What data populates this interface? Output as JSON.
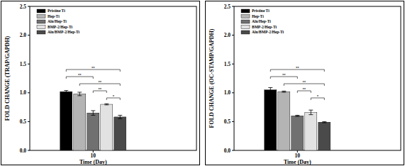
{
  "chart_data": [
    {
      "type": "bar",
      "y_label": "FOLD CHANGE (TRAP/GAPDH)",
      "x_label": "Time (Day)",
      "categories": [
        "10"
      ],
      "ylim": [
        0,
        2.5
      ],
      "yticks": [
        {
          "value": 0,
          "label": "0.0"
        },
        {
          "value": 0.5,
          "label": "0.5"
        },
        {
          "value": 1,
          "label": "1.0"
        },
        {
          "value": 1.5,
          "label": "1.5"
        },
        {
          "value": 2,
          "label": "2.0"
        },
        {
          "value": 2.5,
          "label": "2.5"
        }
      ],
      "legend": "upper left",
      "series": [
        {
          "name": "Pristine Ti",
          "color": "#000000",
          "values": [
            1.02
          ],
          "errors": [
            0.02
          ]
        },
        {
          "name": "Hep-Ti",
          "color": "#b4b4b4",
          "values": [
            0.98
          ],
          "errors": [
            0.03
          ]
        },
        {
          "name": "Aln/Hep-Ti",
          "color": "#707070",
          "values": [
            0.65
          ],
          "errors": [
            0.04
          ]
        },
        {
          "name": "BMP-2/Hep-Ti",
          "color": "#e2e2e2",
          "values": [
            0.8
          ],
          "errors": [
            0.01
          ]
        },
        {
          "name": "Aln/BMP-2/Hep-Ti",
          "color": "#4a4a4a",
          "values": [
            0.58
          ],
          "errors": [
            0.03
          ]
        }
      ],
      "annotations": [
        {
          "text": "**",
          "between": [
            0,
            4
          ]
        },
        {
          "text": "**",
          "between": [
            0,
            2
          ]
        },
        {
          "text": "**",
          "between": [
            1,
            4
          ]
        },
        {
          "text": "**",
          "between": [
            2,
            3
          ]
        },
        {
          "text": "*",
          "between": [
            3,
            4
          ]
        }
      ]
    },
    {
      "type": "bar",
      "y_label": "FOLD CHANGE (OC-STAMP/GAPDH)",
      "x_label": "Time (Day)",
      "categories": [
        "10"
      ],
      "ylim": [
        0,
        2.5
      ],
      "yticks": [
        {
          "value": 0,
          "label": "0.0"
        },
        {
          "value": 0.5,
          "label": "0.5"
        },
        {
          "value": 1,
          "label": "1.0"
        },
        {
          "value": 1.5,
          "label": "1.5"
        },
        {
          "value": 2,
          "label": "2.0"
        },
        {
          "value": 2.5,
          "label": "2.5"
        }
      ],
      "legend": "upper left",
      "series": [
        {
          "name": "Pristine Ti",
          "color": "#000000",
          "values": [
            1.05
          ],
          "errors": [
            0.04
          ]
        },
        {
          "name": "Hep-Ti",
          "color": "#b4b4b4",
          "values": [
            1.02
          ],
          "errors": [
            0.01
          ]
        },
        {
          "name": "Aln/Hep-Ti",
          "color": "#707070",
          "values": [
            0.6
          ],
          "errors": [
            0.01
          ]
        },
        {
          "name": "BMP-2/Hep-Ti",
          "color": "#e2e2e2",
          "values": [
            0.66
          ],
          "errors": [
            0.04
          ]
        },
        {
          "name": "Aln/BMP-2/Hep-Ti",
          "color": "#4a4a4a",
          "values": [
            0.49
          ],
          "errors": [
            0.01
          ]
        }
      ],
      "annotations": [
        {
          "text": "**",
          "between": [
            0,
            4
          ]
        },
        {
          "text": "**",
          "between": [
            0,
            2
          ]
        },
        {
          "text": "**",
          "between": [
            1,
            4
          ]
        },
        {
          "text": "**",
          "between": [
            2,
            3
          ]
        },
        {
          "text": "*",
          "between": [
            3,
            4
          ]
        }
      ]
    }
  ]
}
